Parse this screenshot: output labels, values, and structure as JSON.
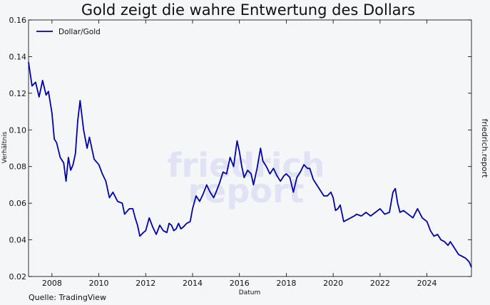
{
  "chart_data": {
    "type": "line",
    "title": "Gold zeigt die wahre Entwertung des Dollars",
    "xlabel": "Datum",
    "ylabel": "Verhältnis",
    "xlim": [
      2007.0,
      2025.9
    ],
    "ylim": [
      0.02,
      0.16
    ],
    "x_ticks": [
      "2008",
      "2010",
      "2012",
      "2014",
      "2016",
      "2018",
      "2020",
      "2022",
      "2024"
    ],
    "y_ticks": [
      "0.02",
      "0.04",
      "0.06",
      "0.08",
      "0.10",
      "0.12",
      "0.14",
      "0.16"
    ],
    "grid": false,
    "legend_position": "top-left",
    "series": [
      {
        "name": "Dollar/Gold",
        "color": "#0000aa",
        "x": [
          2007.0,
          2007.15,
          2007.3,
          2007.45,
          2007.6,
          2007.75,
          2007.85,
          2008.0,
          2008.1,
          2008.2,
          2008.35,
          2008.5,
          2008.6,
          2008.7,
          2008.8,
          2008.9,
          2009.0,
          2009.1,
          2009.2,
          2009.35,
          2009.5,
          2009.6,
          2009.8,
          2010.0,
          2010.15,
          2010.3,
          2010.45,
          2010.6,
          2010.8,
          2011.0,
          2011.1,
          2011.3,
          2011.45,
          2011.55,
          2011.65,
          2011.75,
          2011.9,
          2012.0,
          2012.15,
          2012.3,
          2012.45,
          2012.6,
          2012.75,
          2012.9,
          2013.0,
          2013.1,
          2013.2,
          2013.3,
          2013.4,
          2013.5,
          2013.6,
          2013.75,
          2013.9,
          2014.0,
          2014.15,
          2014.3,
          2014.45,
          2014.6,
          2014.75,
          2014.9,
          2015.0,
          2015.15,
          2015.3,
          2015.45,
          2015.6,
          2015.75,
          2015.9,
          2016.0,
          2016.1,
          2016.2,
          2016.35,
          2016.5,
          2016.6,
          2016.75,
          2016.9,
          2017.0,
          2017.15,
          2017.3,
          2017.45,
          2017.6,
          2017.75,
          2017.9,
          2018.0,
          2018.15,
          2018.3,
          2018.45,
          2018.6,
          2018.75,
          2018.9,
          2019.0,
          2019.15,
          2019.3,
          2019.45,
          2019.6,
          2019.75,
          2019.9,
          2020.0,
          2020.1,
          2020.2,
          2020.3,
          2020.45,
          2020.6,
          2020.75,
          2020.9,
          2021.0,
          2021.2,
          2021.4,
          2021.6,
          2021.8,
          2022.0,
          2022.2,
          2022.4,
          2022.55,
          2022.65,
          2022.75,
          2022.85,
          2023.0,
          2023.2,
          2023.4,
          2023.6,
          2023.8,
          2024.0,
          2024.15,
          2024.3,
          2024.45,
          2024.6,
          2024.75,
          2024.9,
          2025.0,
          2025.2,
          2025.35,
          2025.5,
          2025.65,
          2025.8,
          2025.9
        ],
        "values": [
          0.137,
          0.124,
          0.126,
          0.118,
          0.127,
          0.119,
          0.121,
          0.109,
          0.095,
          0.093,
          0.085,
          0.082,
          0.072,
          0.085,
          0.078,
          0.081,
          0.087,
          0.105,
          0.116,
          0.1,
          0.09,
          0.096,
          0.084,
          0.081,
          0.076,
          0.072,
          0.063,
          0.066,
          0.061,
          0.06,
          0.054,
          0.057,
          0.057,
          0.052,
          0.048,
          0.042,
          0.044,
          0.045,
          0.052,
          0.047,
          0.043,
          0.048,
          0.045,
          0.044,
          0.049,
          0.048,
          0.045,
          0.046,
          0.049,
          0.046,
          0.047,
          0.049,
          0.05,
          0.057,
          0.064,
          0.061,
          0.065,
          0.07,
          0.066,
          0.063,
          0.066,
          0.071,
          0.077,
          0.076,
          0.085,
          0.08,
          0.094,
          0.088,
          0.08,
          0.074,
          0.078,
          0.076,
          0.07,
          0.079,
          0.09,
          0.083,
          0.08,
          0.076,
          0.079,
          0.075,
          0.072,
          0.075,
          0.076,
          0.074,
          0.066,
          0.074,
          0.077,
          0.081,
          0.079,
          0.079,
          0.073,
          0.07,
          0.067,
          0.064,
          0.064,
          0.066,
          0.063,
          0.056,
          0.057,
          0.059,
          0.05,
          0.051,
          0.052,
          0.053,
          0.054,
          0.053,
          0.055,
          0.053,
          0.055,
          0.057,
          0.054,
          0.055,
          0.066,
          0.068,
          0.06,
          0.055,
          0.056,
          0.054,
          0.052,
          0.057,
          0.052,
          0.05,
          0.045,
          0.042,
          0.043,
          0.04,
          0.039,
          0.037,
          0.039,
          0.035,
          0.032,
          0.031,
          0.03,
          0.028,
          0.025
        ]
      }
    ],
    "watermark": [
      "friedrich",
      "report"
    ]
  },
  "side_label": "friedrich.report",
  "source": "Quelle: TradingView"
}
